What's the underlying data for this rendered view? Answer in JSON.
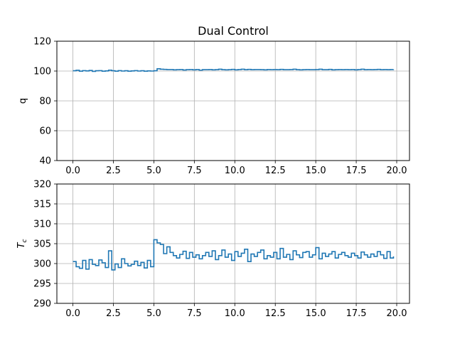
{
  "chart_data": [
    {
      "type": "line",
      "step": true,
      "title": "Dual Control",
      "xlabel": "",
      "ylabel": "q",
      "xlim": [
        -0.99,
        20.79
      ],
      "ylim": [
        40,
        120
      ],
      "xticks": [
        0.0,
        2.5,
        5.0,
        7.5,
        10.0,
        12.5,
        15.0,
        17.5,
        20.0
      ],
      "xtick_labels": [
        "0.0",
        "2.5",
        "5.0",
        "7.5",
        "10.0",
        "12.5",
        "15.0",
        "17.5",
        "20.0"
      ],
      "yticks": [
        40,
        60,
        80,
        100,
        120
      ],
      "ytick_labels": [
        "40",
        "60",
        "80",
        "100",
        "120"
      ],
      "grid": true,
      "color": "#1f77b4",
      "series": [
        {
          "x": [
            0.0,
            0.2,
            0.4,
            0.6,
            0.8,
            1.0,
            1.2,
            1.4,
            1.6,
            1.8,
            2.0,
            2.2,
            2.4,
            2.6,
            2.8,
            3.0,
            3.2,
            3.4,
            3.6,
            3.8,
            4.0,
            4.2,
            4.4,
            4.6,
            4.8,
            5.0,
            5.2,
            5.4,
            5.6,
            5.8,
            6.0,
            6.2,
            6.4,
            6.6,
            6.8,
            7.0,
            7.2,
            7.4,
            7.6,
            7.8,
            8.0,
            8.2,
            8.4,
            8.6,
            8.8,
            9.0,
            9.2,
            9.4,
            9.6,
            9.8,
            10.0,
            10.2,
            10.4,
            10.6,
            10.8,
            11.0,
            11.2,
            11.4,
            11.6,
            11.8,
            12.0,
            12.2,
            12.4,
            12.6,
            12.8,
            13.0,
            13.2,
            13.4,
            13.6,
            13.8,
            14.0,
            14.2,
            14.4,
            14.6,
            14.8,
            15.0,
            15.2,
            15.4,
            15.6,
            15.8,
            16.0,
            16.2,
            16.4,
            16.6,
            16.8,
            17.0,
            17.2,
            17.4,
            17.6,
            17.8,
            18.0,
            18.2,
            18.4,
            18.6,
            18.8,
            19.0,
            19.2,
            19.4,
            19.6,
            19.8
          ],
          "values": [
            100.2,
            100.5,
            99.9,
            100.3,
            100.1,
            100.4,
            99.8,
            100.2,
            100.3,
            99.9,
            100.1,
            100.6,
            100.2,
            99.9,
            100.3,
            100.0,
            100.2,
            99.9,
            100.1,
            100.3,
            100.0,
            100.2,
            99.9,
            100.1,
            100.0,
            100.2,
            101.5,
            101.2,
            101.1,
            101.0,
            101.0,
            100.8,
            100.9,
            101.0,
            100.7,
            100.9,
            101.0,
            100.8,
            101.0,
            100.6,
            100.9,
            100.9,
            101.0,
            100.8,
            100.9,
            101.2,
            100.9,
            100.8,
            100.9,
            101.1,
            100.8,
            101.0,
            101.2,
            100.9,
            101.1,
            100.9,
            101.0,
            101.0,
            100.9,
            100.8,
            101.0,
            100.9,
            101.0,
            100.9,
            101.1,
            100.9,
            100.9,
            101.0,
            101.2,
            100.9,
            100.8,
            100.9,
            101.0,
            100.9,
            100.9,
            101.0,
            101.2,
            100.9,
            100.9,
            101.1,
            100.8,
            100.9,
            101.0,
            100.9,
            101.0,
            100.9,
            101.0,
            100.8,
            101.0,
            101.2,
            100.9,
            101.0,
            100.9,
            101.0,
            101.1,
            100.9,
            101.0,
            100.9,
            101.0,
            101.1
          ]
        }
      ]
    },
    {
      "type": "line",
      "step": true,
      "title": "",
      "xlabel": "",
      "ylabel": "T_c",
      "ylabel_main": "T",
      "ylabel_sub": "c",
      "xlim": [
        -0.99,
        20.79
      ],
      "ylim": [
        290,
        320
      ],
      "xticks": [
        0.0,
        2.5,
        5.0,
        7.5,
        10.0,
        12.5,
        15.0,
        17.5,
        20.0
      ],
      "xtick_labels": [
        "0.0",
        "2.5",
        "5.0",
        "7.5",
        "10.0",
        "12.5",
        "15.0",
        "17.5",
        "20.0"
      ],
      "yticks": [
        290,
        295,
        300,
        305,
        310,
        315,
        320
      ],
      "ytick_labels": [
        "290",
        "295",
        "300",
        "305",
        "310",
        "315",
        "320"
      ],
      "grid": true,
      "color": "#1f77b4",
      "series": [
        {
          "x": [
            0.0,
            0.2,
            0.4,
            0.6,
            0.8,
            1.0,
            1.2,
            1.4,
            1.6,
            1.8,
            2.0,
            2.2,
            2.4,
            2.6,
            2.8,
            3.0,
            3.2,
            3.4,
            3.6,
            3.8,
            4.0,
            4.2,
            4.4,
            4.6,
            4.8,
            5.0,
            5.2,
            5.4,
            5.6,
            5.8,
            6.0,
            6.2,
            6.4,
            6.6,
            6.8,
            7.0,
            7.2,
            7.4,
            7.6,
            7.8,
            8.0,
            8.2,
            8.4,
            8.6,
            8.8,
            9.0,
            9.2,
            9.4,
            9.6,
            9.8,
            10.0,
            10.2,
            10.4,
            10.6,
            10.8,
            11.0,
            11.2,
            11.4,
            11.6,
            11.8,
            12.0,
            12.2,
            12.4,
            12.6,
            12.8,
            13.0,
            13.2,
            13.4,
            13.6,
            13.8,
            14.0,
            14.2,
            14.4,
            14.6,
            14.8,
            15.0,
            15.2,
            15.4,
            15.6,
            15.8,
            16.0,
            16.2,
            16.4,
            16.6,
            16.8,
            17.0,
            17.2,
            17.4,
            17.6,
            17.8,
            18.0,
            18.2,
            18.4,
            18.6,
            18.8,
            19.0,
            19.2,
            19.4,
            19.6,
            19.8
          ],
          "values": [
            300.5,
            299.2,
            298.8,
            300.8,
            298.6,
            301.0,
            299.8,
            299.5,
            300.9,
            300.2,
            299.0,
            303.2,
            298.4,
            299.9,
            299.0,
            301.2,
            300.0,
            299.4,
            299.8,
            300.6,
            299.5,
            300.3,
            298.9,
            300.8,
            299.2,
            306.0,
            305.2,
            304.8,
            302.5,
            304.2,
            302.8,
            302.0,
            301.4,
            302.3,
            303.1,
            301.3,
            302.8,
            301.6,
            302.2,
            301.2,
            302.0,
            302.8,
            301.8,
            303.2,
            301.0,
            302.0,
            303.4,
            301.6,
            302.4,
            300.8,
            303.0,
            301.8,
            302.6,
            303.6,
            300.5,
            302.4,
            301.8,
            302.8,
            303.4,
            301.2,
            302.0,
            301.6,
            302.8,
            301.2,
            303.8,
            301.6,
            302.3,
            301.0,
            303.2,
            302.2,
            301.5,
            302.8,
            303.0,
            301.6,
            302.2,
            304.0,
            301.2,
            302.6,
            301.8,
            302.4,
            303.0,
            301.4,
            302.3,
            302.8,
            302.0,
            301.6,
            302.6,
            302.0,
            301.4,
            302.9,
            302.2,
            301.6,
            302.4,
            301.8,
            303.0,
            302.2,
            301.3,
            303.0,
            301.4,
            301.8
          ]
        }
      ]
    }
  ]
}
